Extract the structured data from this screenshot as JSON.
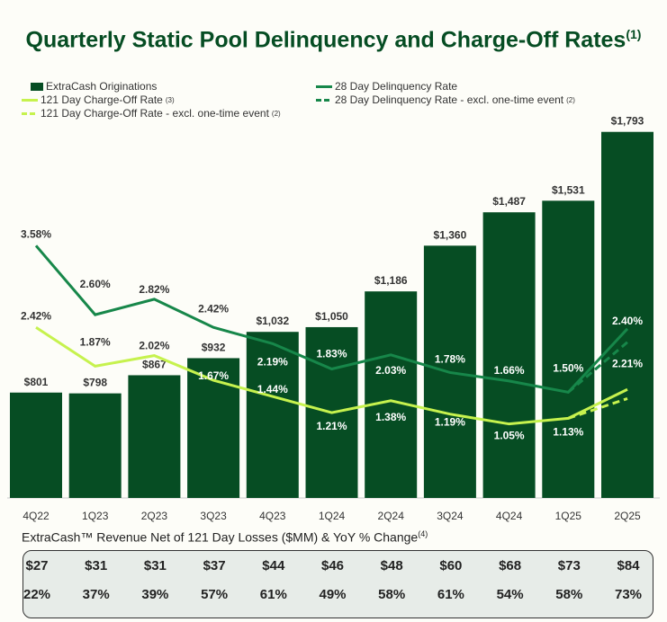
{
  "chart_data": {
    "type": "bar+line",
    "title": "Quarterly Static Pool Delinquency and Charge-Off Rates",
    "title_note": "(1)",
    "categories": [
      "4Q22",
      "1Q23",
      "2Q23",
      "3Q23",
      "4Q23",
      "1Q24",
      "2Q24",
      "3Q24",
      "4Q24",
      "1Q25",
      "2Q25"
    ],
    "bars": {
      "name": "ExtraCash Originations",
      "values": [
        801,
        798,
        867,
        932,
        1032,
        1050,
        1186,
        1360,
        1487,
        1531,
        1793
      ],
      "labels": [
        "$801",
        "$798",
        "$867",
        "$932",
        "$1,032",
        "$1,050",
        "$1,186",
        "$1,360",
        "$1,487",
        "$1,531",
        "$1,793"
      ],
      "ylim": [
        400,
        1816
      ]
    },
    "series": [
      {
        "name": "28 Day Delinquency Rate",
        "values": [
          3.58,
          2.6,
          2.82,
          2.42,
          2.19,
          1.83,
          2.03,
          1.78,
          1.66,
          1.5,
          2.4
        ],
        "labels": [
          "3.58%",
          "2.60%",
          "2.82%",
          "2.42%",
          "2.19%",
          "1.83%",
          "2.03%",
          "1.78%",
          "1.66%",
          "1.50%",
          "2.40%"
        ],
        "style": "solid",
        "color": "#17874a"
      },
      {
        "name": "121 Day Charge-Off Rate",
        "note": "(3)",
        "values": [
          2.42,
          1.87,
          2.02,
          1.67,
          1.44,
          1.21,
          1.38,
          1.19,
          1.05,
          1.13,
          1.54
        ],
        "labels": [
          "2.42%",
          "1.87%",
          "2.02%",
          "1.67%",
          "1.44%",
          "1.21%",
          "1.38%",
          "1.19%",
          "1.05%",
          "1.13%",
          ""
        ],
        "style": "solid",
        "color": "#c6f24e"
      },
      {
        "name": "28 Day Delinquency Rate - excl. one-time event",
        "note": "(2)",
        "x": [
          "1Q25",
          "2Q25"
        ],
        "values": [
          1.5,
          2.21
        ],
        "labels": [
          "",
          "2.21%"
        ],
        "style": "dashed",
        "color": "#17874a"
      },
      {
        "name": "121 Day Charge-Off Rate - excl. one-time event",
        "note": "(2)",
        "x": [
          "1Q25",
          "2Q25"
        ],
        "values": [
          1.13,
          1.41
        ],
        "labels": [
          "",
          ""
        ],
        "style": "dashed",
        "color": "#c6f24e"
      }
    ],
    "line_ylim": [
      0,
      5.28
    ],
    "legend": "top-left"
  },
  "colors": {
    "bar": "#064d23",
    "dq": "#17874a",
    "co": "#c6f24e"
  },
  "table": {
    "title": "ExtraCash™ Revenue Net of 121 Day Losses ($MM) & YoY % Change",
    "note": "(4)",
    "revenue": [
      "$27",
      "$31",
      "$31",
      "$37",
      "$44",
      "$46",
      "$48",
      "$60",
      "$68",
      "$73",
      "$84"
    ],
    "yoy": [
      "22%",
      "37%",
      "39%",
      "57%",
      "61%",
      "49%",
      "58%",
      "61%",
      "54%",
      "58%",
      "73%"
    ]
  }
}
